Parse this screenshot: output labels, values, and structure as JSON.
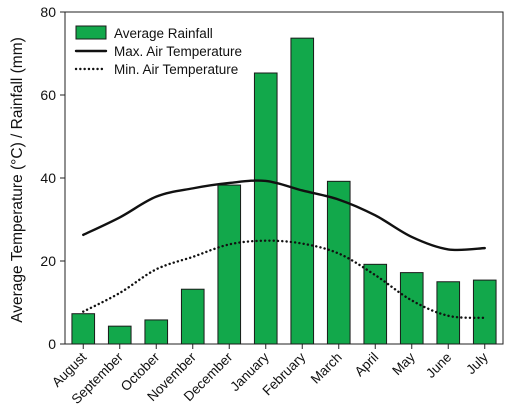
{
  "chart_data": {
    "type": "bar",
    "categories": [
      "August",
      "September",
      "October",
      "November",
      "December",
      "January",
      "February",
      "March",
      "April",
      "May",
      "June",
      "July"
    ],
    "ylabel": "Average Temperature (°C) / Rainfall (mm)",
    "xlabel": "",
    "ylim": [
      0,
      80
    ],
    "yticks": [
      0,
      20,
      40,
      60,
      80
    ],
    "grid": false,
    "legend_position": "top-left",
    "series": [
      {
        "name": "Average Rainfall",
        "kind": "bar",
        "values": [
          7.3,
          4.3,
          5.8,
          13.2,
          38.3,
          65.3,
          73.7,
          39.2,
          19.2,
          17.2,
          15.0,
          15.4
        ]
      },
      {
        "name": "Max. Air Temperature",
        "kind": "line",
        "style": "solid",
        "values": [
          26.3,
          30.5,
          35.5,
          37.5,
          38.8,
          39.3,
          37.0,
          34.8,
          31.0,
          25.8,
          22.8,
          23.1
        ]
      },
      {
        "name": "Min. Air Temperature",
        "kind": "line",
        "style": "dotted",
        "values": [
          7.8,
          12.3,
          18.0,
          21.0,
          24.0,
          24.9,
          24.2,
          21.8,
          16.6,
          10.5,
          6.8,
          6.3
        ]
      }
    ],
    "colors": {
      "bar_fill": "#12a84b",
      "bar_edge": "#1a1a1a",
      "line": "#111111"
    }
  }
}
